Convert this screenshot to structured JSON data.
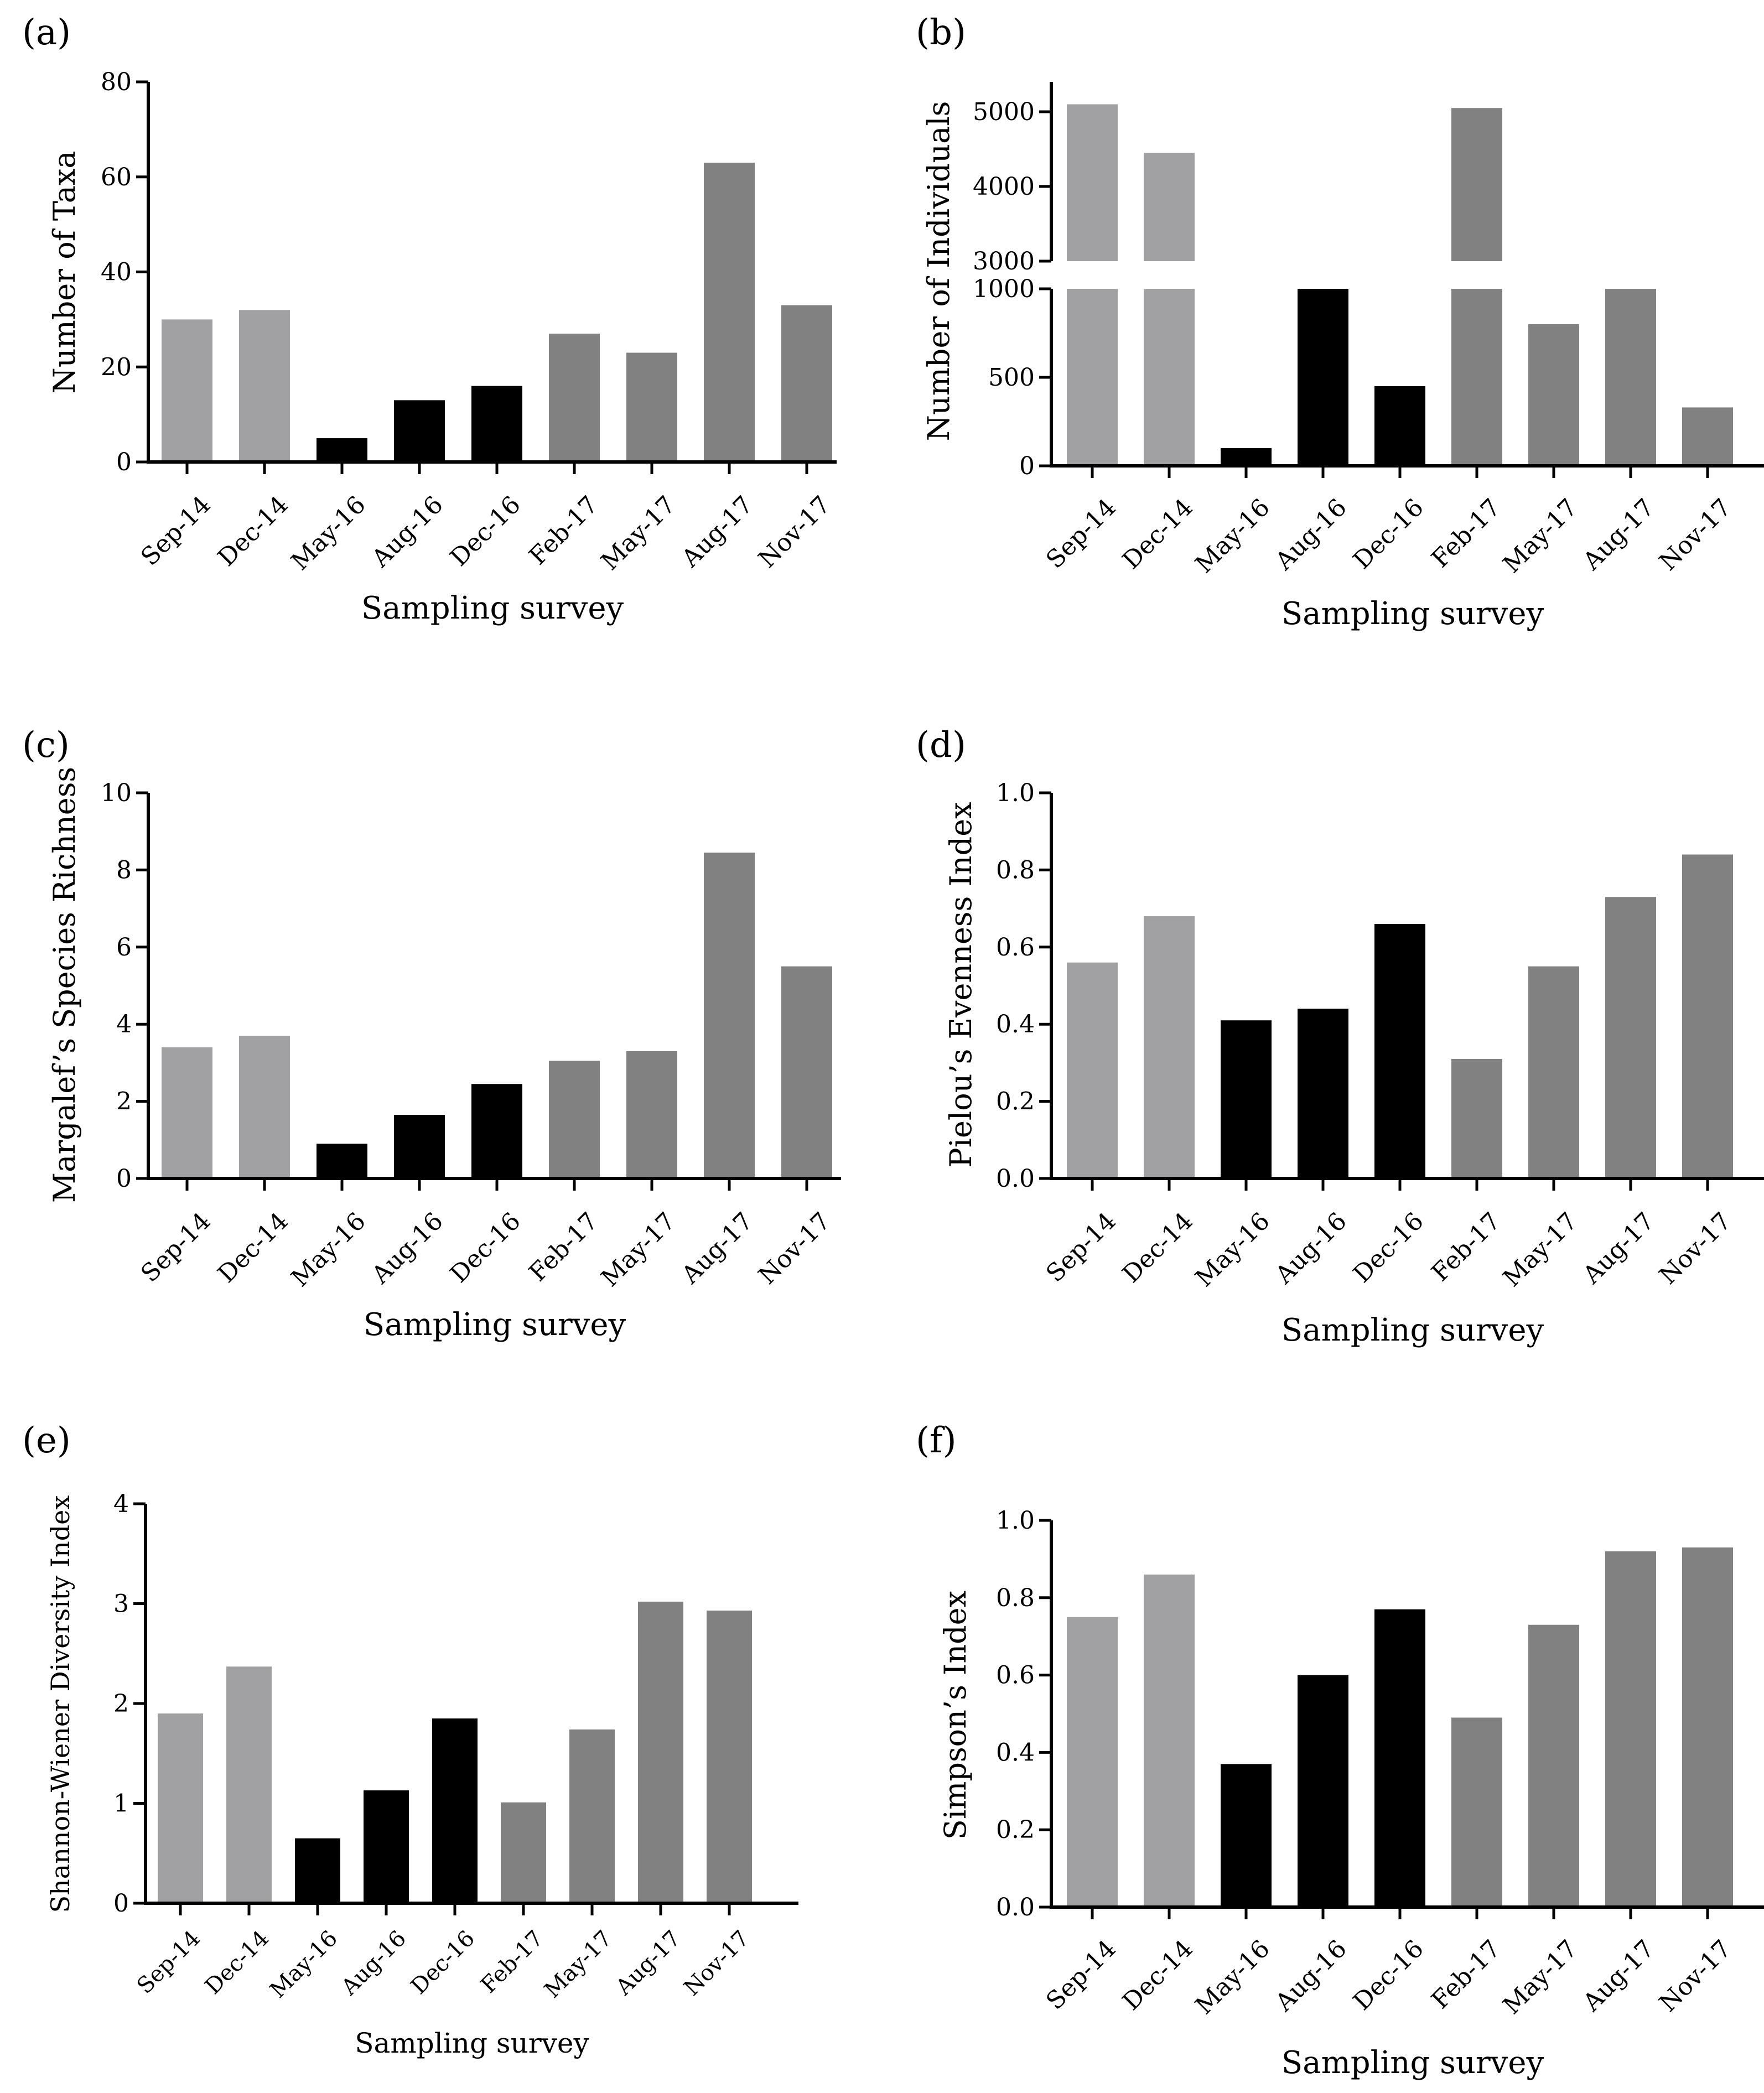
{
  "colors": {
    "light": "#a1a1a4",
    "black": "#000000",
    "dark": "#818181"
  },
  "chart_data": [
    {
      "type": "bar",
      "panel_label": "(a)",
      "categories": [
        "Sep-14",
        "Dec-14",
        "May-16",
        "Aug-16",
        "Dec-16",
        "Feb-17",
        "May-17",
        "Aug-17",
        "Nov-17"
      ],
      "values": [
        30,
        32,
        5,
        13,
        16,
        27,
        23,
        63,
        33
      ],
      "bar_colors": [
        "light",
        "light",
        "black",
        "black",
        "black",
        "dark",
        "dark",
        "dark",
        "dark"
      ],
      "xlabel": "Sampling survey",
      "ylabel": "Number of Taxa",
      "ylim": [
        0,
        80
      ],
      "yticks": [
        0,
        20,
        40,
        60,
        80
      ],
      "ytick_labels": [
        "0",
        "20",
        "40",
        "60",
        "80"
      ]
    },
    {
      "type": "bar",
      "panel_label": "(b)",
      "categories": [
        "Sep-14",
        "Dec-14",
        "May-16",
        "Aug-16",
        "Dec-16",
        "Feb-17",
        "May-17",
        "Aug-17",
        "Nov-17"
      ],
      "values": [
        5100,
        4450,
        100,
        1000,
        450,
        5050,
        800,
        1000,
        330
      ],
      "bar_colors": [
        "light",
        "light",
        "black",
        "black",
        "black",
        "dark",
        "dark",
        "dark",
        "dark"
      ],
      "xlabel": "Sampling survey",
      "ylabel": "Number of Individuals",
      "broken_axis": {
        "lower": [
          0,
          1000
        ],
        "upper": [
          3000,
          5400
        ]
      },
      "yticks_lower": [
        0,
        500,
        1000
      ],
      "ytick_labels_lower": [
        "0",
        "500",
        "1000"
      ],
      "yticks_upper": [
        3000,
        4000,
        5000
      ],
      "ytick_labels_upper": [
        "3000",
        "4000",
        "5000"
      ]
    },
    {
      "type": "bar",
      "panel_label": "(c)",
      "categories": [
        "Sep-14",
        "Dec-14",
        "May-16",
        "Aug-16",
        "Dec-16",
        "Feb-17",
        "May-17",
        "Aug-17",
        "Nov-17"
      ],
      "values": [
        3.4,
        3.7,
        0.9,
        1.65,
        2.45,
        3.05,
        3.3,
        8.45,
        5.5
      ],
      "bar_colors": [
        "light",
        "light",
        "black",
        "black",
        "black",
        "dark",
        "dark",
        "dark",
        "dark"
      ],
      "xlabel": "Sampling survey",
      "ylabel": "Margalef’s Species Richness",
      "ylim": [
        0,
        10
      ],
      "yticks": [
        0,
        2,
        4,
        6,
        8,
        10
      ],
      "ytick_labels": [
        "0",
        "2",
        "4",
        "6",
        "8",
        "10"
      ]
    },
    {
      "type": "bar",
      "panel_label": "(d)",
      "categories": [
        "Sep-14",
        "Dec-14",
        "May-16",
        "Aug-16",
        "Dec-16",
        "Feb-17",
        "May-17",
        "Aug-17",
        "Nov-17"
      ],
      "values": [
        0.56,
        0.68,
        0.41,
        0.44,
        0.66,
        0.31,
        0.55,
        0.73,
        0.84
      ],
      "bar_colors": [
        "light",
        "light",
        "black",
        "black",
        "black",
        "dark",
        "dark",
        "dark",
        "dark"
      ],
      "xlabel": "Sampling survey",
      "ylabel": "Pielou’s Evenness Index",
      "ylim": [
        0,
        1.0
      ],
      "yticks": [
        0,
        0.2,
        0.4,
        0.6,
        0.8,
        1.0
      ],
      "ytick_labels": [
        "0.0",
        "0.2",
        "0.4",
        "0.6",
        "0.8",
        "1.0"
      ]
    },
    {
      "type": "bar",
      "panel_label": "(e)",
      "categories": [
        "Sep-14",
        "Dec-14",
        "May-16",
        "Aug-16",
        "Dec-16",
        "Feb-17",
        "May-17",
        "Aug-17",
        "Nov-17"
      ],
      "values": [
        1.9,
        2.37,
        0.65,
        1.13,
        1.85,
        1.01,
        1.74,
        3.02,
        2.93
      ],
      "bar_colors": [
        "light",
        "light",
        "black",
        "black",
        "black",
        "dark",
        "dark",
        "dark",
        "dark"
      ],
      "xlabel": "Sampling survey",
      "ylabel": "Shannon-Wiener Diversity Index",
      "ylim": [
        0,
        4
      ],
      "yticks": [
        0,
        1,
        2,
        3,
        4
      ],
      "ytick_labels": [
        "0",
        "1",
        "2",
        "3",
        "4"
      ]
    },
    {
      "type": "bar",
      "panel_label": "(f)",
      "categories": [
        "Sep-14",
        "Dec-14",
        "May-16",
        "Aug-16",
        "Dec-16",
        "Feb-17",
        "May-17",
        "Aug-17",
        "Nov-17"
      ],
      "values": [
        0.75,
        0.86,
        0.37,
        0.6,
        0.77,
        0.49,
        0.73,
        0.92,
        0.93
      ],
      "bar_colors": [
        "light",
        "light",
        "black",
        "black",
        "black",
        "dark",
        "dark",
        "dark",
        "dark"
      ],
      "xlabel": "Sampling survey",
      "ylabel": "Simpson’s Index",
      "ylim": [
        0,
        1.0
      ],
      "yticks": [
        0,
        0.2,
        0.4,
        0.6,
        0.8,
        1.0
      ],
      "ytick_labels": [
        "0.0",
        "0.2",
        "0.4",
        "0.6",
        "0.8",
        "1.0"
      ]
    }
  ]
}
